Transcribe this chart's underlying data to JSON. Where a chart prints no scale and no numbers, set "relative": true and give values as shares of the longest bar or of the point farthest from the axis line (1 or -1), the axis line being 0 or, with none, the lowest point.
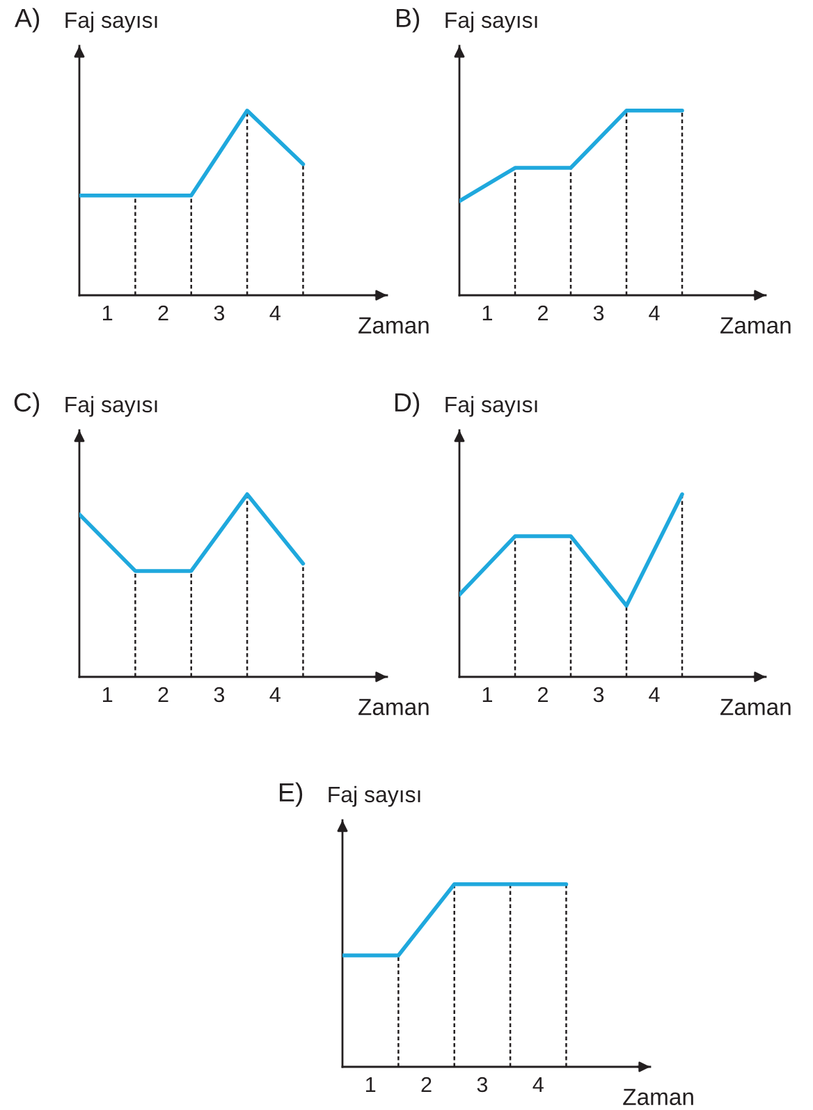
{
  "chart_data": [
    {
      "type": "line",
      "title": "A)",
      "ylabel": "Faj sayısı",
      "xlabel": "Zaman",
      "relative": true,
      "x": [
        0,
        1,
        2,
        3,
        4
      ],
      "xlim": [
        0,
        5.5
      ],
      "xticks": [
        {
          "value": 0.5,
          "label": "1"
        },
        {
          "value": 1.5,
          "label": "2"
        },
        {
          "value": 2.5,
          "label": "3"
        },
        {
          "value": 3.5,
          "label": "4"
        }
      ],
      "series": [
        {
          "color": "#1fa8dd",
          "values": [
            0.54,
            0.54,
            0.54,
            1,
            0.71
          ]
        }
      ],
      "ref_lines": [
        {
          "axis": "x",
          "value": 1,
          "color": "#231f20",
          "line_style": "dashed"
        },
        {
          "axis": "x",
          "value": 2,
          "color": "#231f20",
          "line_style": "dashed"
        },
        {
          "axis": "x",
          "value": 3,
          "color": "#231f20",
          "line_style": "dashed"
        },
        {
          "axis": "x",
          "value": 4,
          "color": "#231f20",
          "line_style": "dashed"
        }
      ]
    },
    {
      "type": "line",
      "title": "B)",
      "ylabel": "Faj sayısı",
      "xlabel": "Zaman",
      "relative": true,
      "x": [
        0,
        1,
        2,
        3,
        4
      ],
      "xlim": [
        0,
        5.5
      ],
      "xticks": [
        {
          "value": 0.5,
          "label": "1"
        },
        {
          "value": 1.5,
          "label": "2"
        },
        {
          "value": 2.5,
          "label": "3"
        },
        {
          "value": 3.5,
          "label": "4"
        }
      ],
      "series": [
        {
          "color": "#1fa8dd",
          "values": [
            0.51,
            0.69,
            0.69,
            1,
            1
          ]
        }
      ],
      "ref_lines": [
        {
          "axis": "x",
          "value": 1,
          "color": "#231f20",
          "line_style": "dashed"
        },
        {
          "axis": "x",
          "value": 2,
          "color": "#231f20",
          "line_style": "dashed"
        },
        {
          "axis": "x",
          "value": 3,
          "color": "#231f20",
          "line_style": "dashed"
        },
        {
          "axis": "x",
          "value": 4,
          "color": "#231f20",
          "line_style": "dashed"
        }
      ]
    },
    {
      "type": "line",
      "title": "C)",
      "ylabel": "Faj sayısı",
      "xlabel": "Zaman",
      "relative": true,
      "x": [
        0,
        1,
        2,
        3,
        4
      ],
      "xlim": [
        0,
        5.5
      ],
      "xticks": [
        {
          "value": 0.5,
          "label": "1"
        },
        {
          "value": 1.5,
          "label": "2"
        },
        {
          "value": 2.5,
          "label": "3"
        },
        {
          "value": 3.5,
          "label": "4"
        }
      ],
      "series": [
        {
          "color": "#1fa8dd",
          "values": [
            0.89,
            0.58,
            0.58,
            1,
            0.62
          ]
        }
      ],
      "ref_lines": [
        {
          "axis": "x",
          "value": 1,
          "color": "#231f20",
          "line_style": "dashed"
        },
        {
          "axis": "x",
          "value": 2,
          "color": "#231f20",
          "line_style": "dashed"
        },
        {
          "axis": "x",
          "value": 3,
          "color": "#231f20",
          "line_style": "dashed"
        },
        {
          "axis": "x",
          "value": 4,
          "color": "#231f20",
          "line_style": "dashed"
        }
      ]
    },
    {
      "type": "line",
      "title": "D)",
      "ylabel": "Faj sayısı",
      "xlabel": "Zaman",
      "relative": true,
      "x": [
        0,
        1,
        2,
        3,
        4
      ],
      "xlim": [
        0,
        5.5
      ],
      "xticks": [
        {
          "value": 0.5,
          "label": "1"
        },
        {
          "value": 1.5,
          "label": "2"
        },
        {
          "value": 2.5,
          "label": "3"
        },
        {
          "value": 3.5,
          "label": "4"
        }
      ],
      "series": [
        {
          "color": "#1fa8dd",
          "values": [
            0.45,
            0.77,
            0.77,
            0.39,
            1
          ]
        }
      ],
      "ref_lines": [
        {
          "axis": "x",
          "value": 1,
          "color": "#231f20",
          "line_style": "dashed"
        },
        {
          "axis": "x",
          "value": 2,
          "color": "#231f20",
          "line_style": "dashed"
        },
        {
          "axis": "x",
          "value": 3,
          "color": "#231f20",
          "line_style": "dashed"
        },
        {
          "axis": "x",
          "value": 4,
          "color": "#231f20",
          "line_style": "dashed"
        }
      ]
    },
    {
      "type": "line",
      "title": "E)",
      "ylabel": "Faj sayısı",
      "xlabel": "Zaman",
      "relative": true,
      "x": [
        0,
        1,
        2,
        3,
        4
      ],
      "xlim": [
        0,
        5.5
      ],
      "xticks": [
        {
          "value": 0.5,
          "label": "1"
        },
        {
          "value": 1.5,
          "label": "2"
        },
        {
          "value": 2.5,
          "label": "3"
        },
        {
          "value": 3.5,
          "label": "4"
        }
      ],
      "series": [
        {
          "color": "#1fa8dd",
          "values": [
            0.61,
            0.61,
            1,
            1,
            1
          ]
        }
      ],
      "ref_lines": [
        {
          "axis": "x",
          "value": 1,
          "color": "#231f20",
          "line_style": "dashed"
        },
        {
          "axis": "x",
          "value": 2,
          "color": "#231f20",
          "line_style": "dashed"
        },
        {
          "axis": "x",
          "value": 3,
          "color": "#231f20",
          "line_style": "dashed"
        },
        {
          "axis": "x",
          "value": 4,
          "color": "#231f20",
          "line_style": "dashed"
        }
      ]
    }
  ]
}
